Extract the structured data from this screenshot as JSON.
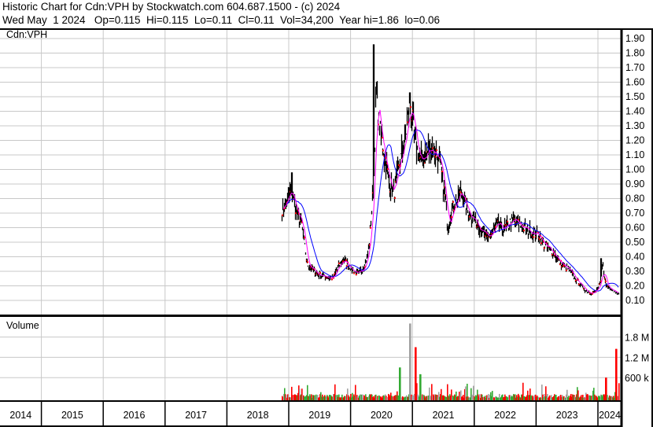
{
  "header": {
    "line1": "Historic Chart for Cdn:VPH by Stockwatch.com 604.687.1500 - (c) 2024",
    "line2": "Wed May  1 2024   Op=0.115  Hi=0.115  Lo=0.11  Cl=0.11  Vol=34,200  Year hi=1.86  lo=0.06"
  },
  "chart_data": {
    "type": "line",
    "symbol_label": "Cdn:VPH",
    "volume_label": "Volume",
    "x_tick_labels": [
      "2014",
      "2015",
      "2016",
      "2017",
      "2018",
      "2019",
      "2020",
      "2021",
      "2022",
      "2023",
      "2024"
    ],
    "price_ticks": [
      "0.10",
      "0.20",
      "0.30",
      "0.40",
      "0.50",
      "0.60",
      "0.70",
      "0.80",
      "0.90",
      "1.00",
      "1.10",
      "1.20",
      "1.30",
      "1.40",
      "1.50",
      "1.60",
      "1.70",
      "1.80",
      "1.90"
    ],
    "volume_ticks": [
      "600 k",
      "1.2 M",
      "1.8 M"
    ],
    "ylim": [
      0,
      2.0
    ],
    "volume_ylim": [
      0,
      2400000
    ],
    "grid": true,
    "colors": {
      "bars": "#000000",
      "close": "#ff0000",
      "ma_short": "#ff00ff",
      "ma_long": "#0000ff",
      "vol_up": "#33aa33",
      "vol_down": "#ff0000",
      "vol_flat": "#a0a0a0",
      "grid": "#c8c8c8"
    },
    "price_series": [
      [
        "2018-11",
        0.72
      ],
      [
        "2019-01",
        0.85
      ],
      [
        "2019-02",
        0.7
      ],
      [
        "2019-03",
        0.62
      ],
      [
        "2019-04",
        0.35
      ],
      [
        "2019-06",
        0.28
      ],
      [
        "2019-09",
        0.25
      ],
      [
        "2019-10",
        0.33
      ],
      [
        "2019-11",
        0.38
      ],
      [
        "2020-01",
        0.3
      ],
      [
        "2020-02",
        0.28
      ],
      [
        "2020-03",
        0.33
      ],
      [
        "2020-04",
        0.45
      ],
      [
        "2020-05",
        0.95
      ],
      [
        "2020-05",
        1.55
      ],
      [
        "2020-06",
        1.3
      ],
      [
        "2020-07",
        1.1
      ],
      [
        "2020-08",
        0.9
      ],
      [
        "2020-09",
        0.85
      ],
      [
        "2020-10",
        1.05
      ],
      [
        "2020-11",
        1.2
      ],
      [
        "2020-12",
        1.45
      ],
      [
        "2021-01",
        1.2
      ],
      [
        "2021-02",
        1.05
      ],
      [
        "2021-04",
        1.15
      ],
      [
        "2021-05",
        1.12
      ],
      [
        "2021-06",
        1.0
      ],
      [
        "2021-07",
        0.75
      ],
      [
        "2021-07",
        0.6
      ],
      [
        "2021-08",
        0.72
      ],
      [
        "2021-10",
        0.85
      ],
      [
        "2021-11",
        0.72
      ],
      [
        "2021-12",
        0.68
      ],
      [
        "2022-02",
        0.58
      ],
      [
        "2022-03",
        0.52
      ],
      [
        "2022-05",
        0.62
      ],
      [
        "2022-06",
        0.58
      ],
      [
        "2022-08",
        0.65
      ],
      [
        "2022-10",
        0.6
      ],
      [
        "2022-11",
        0.58
      ],
      [
        "2023-01",
        0.55
      ],
      [
        "2023-02",
        0.48
      ],
      [
        "2023-04",
        0.42
      ],
      [
        "2023-05",
        0.36
      ],
      [
        "2023-07",
        0.3
      ],
      [
        "2023-08",
        0.25
      ],
      [
        "2023-10",
        0.17
      ],
      [
        "2023-11",
        0.15
      ],
      [
        "2023-12",
        0.16
      ],
      [
        "2024-01",
        0.22
      ],
      [
        "2024-01",
        0.35
      ],
      [
        "2024-02",
        0.2
      ],
      [
        "2024-04",
        0.16
      ],
      [
        "2024-05",
        0.11
      ]
    ],
    "notable_highs": [
      [
        "2019-01",
        0.98
      ],
      [
        "2020-05",
        1.86
      ],
      [
        "2020-12",
        1.53
      ],
      [
        "2024-01",
        0.39
      ]
    ],
    "notable_volumes": [
      [
        "2020-12",
        2200000,
        "flat"
      ],
      [
        "2021-01",
        1500000,
        "down"
      ],
      [
        "2020-10",
        900000,
        "up"
      ],
      [
        "2021-02",
        700000,
        "up"
      ],
      [
        "2024-04",
        1450000,
        "down"
      ],
      [
        "2024-02",
        600000,
        "down"
      ]
    ]
  }
}
